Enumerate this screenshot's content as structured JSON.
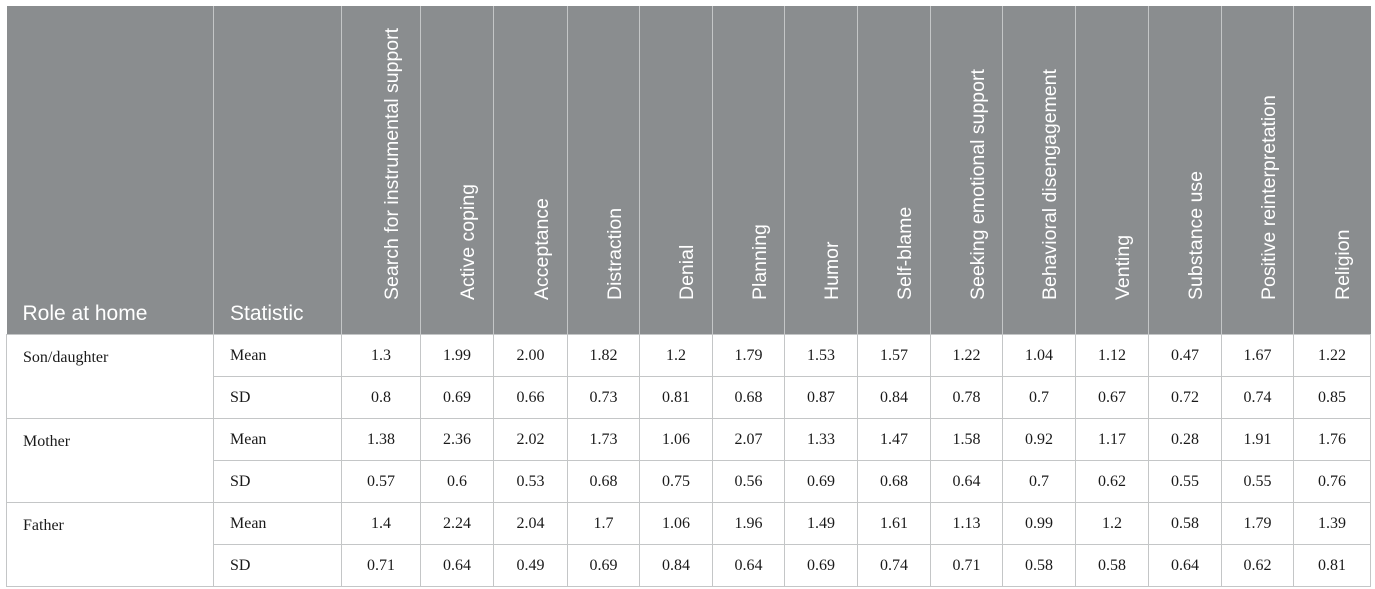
{
  "table": {
    "headers": {
      "role": "Role at home",
      "statistic": "Statistic",
      "columns": [
        "Search for instrumental support",
        "Active coping",
        "Acceptance",
        "Distraction",
        "Denial",
        "Planning",
        "Humor",
        "Self-blame",
        "Seeking emotional support",
        "Behavioral disengagement",
        "Venting",
        "Substance use",
        "Positive reinterpretation",
        "Religion"
      ]
    },
    "groups": [
      {
        "role": "Son/daughter",
        "rows": [
          {
            "stat": "Mean",
            "values": [
              "1.3",
              "1.99",
              "2.00",
              "1.82",
              "1.2",
              "1.79",
              "1.53",
              "1.57",
              "1.22",
              "1.04",
              "1.12",
              "0.47",
              "1.67",
              "1.22"
            ]
          },
          {
            "stat": "SD",
            "values": [
              "0.8",
              "0.69",
              "0.66",
              "0.73",
              "0.81",
              "0.68",
              "0.87",
              "0.84",
              "0.78",
              "0.7",
              "0.67",
              "0.72",
              "0.74",
              "0.85"
            ]
          }
        ]
      },
      {
        "role": "Mother",
        "rows": [
          {
            "stat": "Mean",
            "values": [
              "1.38",
              "2.36",
              "2.02",
              "1.73",
              "1.06",
              "2.07",
              "1.33",
              "1.47",
              "1.58",
              "0.92",
              "1.17",
              "0.28",
              "1.91",
              "1.76"
            ]
          },
          {
            "stat": "SD",
            "values": [
              "0.57",
              "0.6",
              "0.53",
              "0.68",
              "0.75",
              "0.56",
              "0.69",
              "0.68",
              "0.64",
              "0.7",
              "0.62",
              "0.55",
              "0.55",
              "0.76"
            ]
          }
        ]
      },
      {
        "role": "Father",
        "rows": [
          {
            "stat": "Mean",
            "values": [
              "1.4",
              "2.24",
              "2.04",
              "1.7",
              "1.06",
              "1.96",
              "1.49",
              "1.61",
              "1.13",
              "0.99",
              "1.2",
              "0.58",
              "1.79",
              "1.39"
            ]
          },
          {
            "stat": "SD",
            "values": [
              "0.71",
              "0.64",
              "0.49",
              "0.69",
              "0.84",
              "0.64",
              "0.69",
              "0.74",
              "0.71",
              "0.58",
              "0.58",
              "0.64",
              "0.62",
              "0.81"
            ]
          }
        ]
      }
    ]
  }
}
